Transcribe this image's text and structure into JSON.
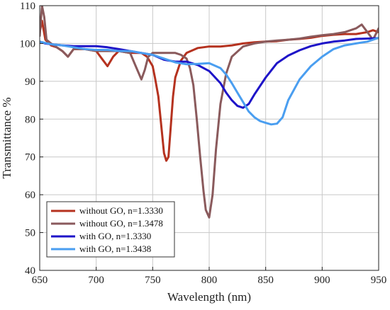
{
  "chart_data": {
    "type": "line",
    "title": "",
    "xlabel": "Wavelength (nm)",
    "ylabel": "Transmittance %",
    "xlim": [
      650,
      950
    ],
    "ylim": [
      40,
      110
    ],
    "xticks": [
      650,
      700,
      750,
      800,
      850,
      900,
      950
    ],
    "yticks": [
      40,
      50,
      60,
      70,
      80,
      90,
      100,
      110
    ],
    "grid": true,
    "legend_position": "bottom-left",
    "series": [
      {
        "name": "without GO, n=1.3330",
        "color": "#b5321f",
        "x": [
          650,
          652,
          655,
          660,
          665,
          670,
          675,
          680,
          690,
          700,
          705,
          710,
          715,
          720,
          730,
          740,
          745,
          750,
          752,
          755,
          758,
          760,
          762,
          764,
          766,
          768,
          770,
          775,
          780,
          790,
          800,
          810,
          820,
          830,
          840,
          850,
          860,
          870,
          880,
          890,
          900,
          910,
          920,
          930,
          940,
          945,
          950
        ],
        "y": [
          103,
          106,
          101,
          99.5,
          99,
          98,
          96.5,
          98.5,
          98.5,
          98,
          96,
          94,
          96.5,
          98,
          97.5,
          97.5,
          96.5,
          94,
          91,
          86,
          77,
          71,
          69,
          70,
          78,
          86,
          91,
          95.5,
          97.5,
          98.8,
          99.2,
          99.2,
          99.5,
          100,
          100.3,
          100.5,
          100.6,
          101,
          101.2,
          101.5,
          102,
          102.3,
          102.5,
          102.5,
          103,
          103.5,
          103
        ]
      },
      {
        "name": "without GO, n=1.3478",
        "color": "#8a5a5c",
        "x": [
          650,
          652,
          654,
          656,
          660,
          665,
          670,
          675,
          680,
          690,
          700,
          710,
          720,
          730,
          735,
          740,
          743,
          746,
          750,
          760,
          770,
          775,
          780,
          783,
          786,
          789,
          792,
          795,
          797,
          800,
          803,
          806,
          810,
          815,
          820,
          830,
          840,
          850,
          860,
          870,
          880,
          890,
          900,
          910,
          920,
          930,
          935,
          940,
          945,
          950
        ],
        "y": [
          102,
          110,
          107,
          101,
          100,
          99,
          98,
          96.5,
          98.5,
          98.5,
          98,
          98,
          98,
          97.5,
          94,
          90.5,
          93,
          96.5,
          97.5,
          97.5,
          97.5,
          97,
          96,
          93.5,
          89,
          80,
          70,
          61,
          56,
          54,
          60,
          72,
          84,
          92,
          96.5,
          99.2,
          100,
          100.5,
          100.8,
          101,
          101.3,
          101.8,
          102.2,
          102.5,
          103,
          104,
          105,
          103,
          101,
          104
        ]
      },
      {
        "name": "with GO, n=1.3330",
        "color": "#1e14c8",
        "x": [
          650,
          655,
          660,
          670,
          680,
          690,
          700,
          710,
          720,
          730,
          740,
          750,
          760,
          770,
          780,
          790,
          800,
          810,
          815,
          820,
          825,
          830,
          835,
          840,
          850,
          860,
          870,
          880,
          890,
          900,
          910,
          920,
          930,
          940,
          950
        ],
        "y": [
          100.5,
          100,
          99.8,
          99.5,
          99.3,
          99.3,
          99.3,
          99,
          98.5,
          98,
          97.5,
          97,
          95.7,
          95.2,
          95.2,
          94.3,
          92.7,
          89.5,
          87,
          85,
          83.5,
          83,
          84,
          86.5,
          91,
          94.8,
          96.8,
          98.2,
          99.3,
          100,
          100.5,
          100.8,
          101.2,
          101.3,
          101.4
        ]
      },
      {
        "name": "with GO, n=1.3438",
        "color": "#4a9ef0",
        "x": [
          650,
          660,
          670,
          680,
          690,
          700,
          710,
          720,
          730,
          740,
          750,
          760,
          770,
          780,
          790,
          800,
          810,
          815,
          820,
          825,
          830,
          835,
          840,
          845,
          850,
          855,
          860,
          865,
          870,
          880,
          890,
          900,
          910,
          920,
          930,
          940,
          945,
          950
        ],
        "y": [
          100.5,
          99.8,
          99.5,
          99,
          98.5,
          98.3,
          98.3,
          98,
          98,
          97.5,
          97,
          96,
          95,
          94.5,
          94.6,
          94.8,
          93.5,
          91.8,
          89.5,
          87,
          84.5,
          82,
          80.5,
          79.5,
          79,
          78.6,
          78.8,
          80.5,
          85,
          90.5,
          94,
          96.5,
          98.5,
          99.5,
          100,
          100.5,
          101,
          101.5
        ]
      }
    ]
  }
}
